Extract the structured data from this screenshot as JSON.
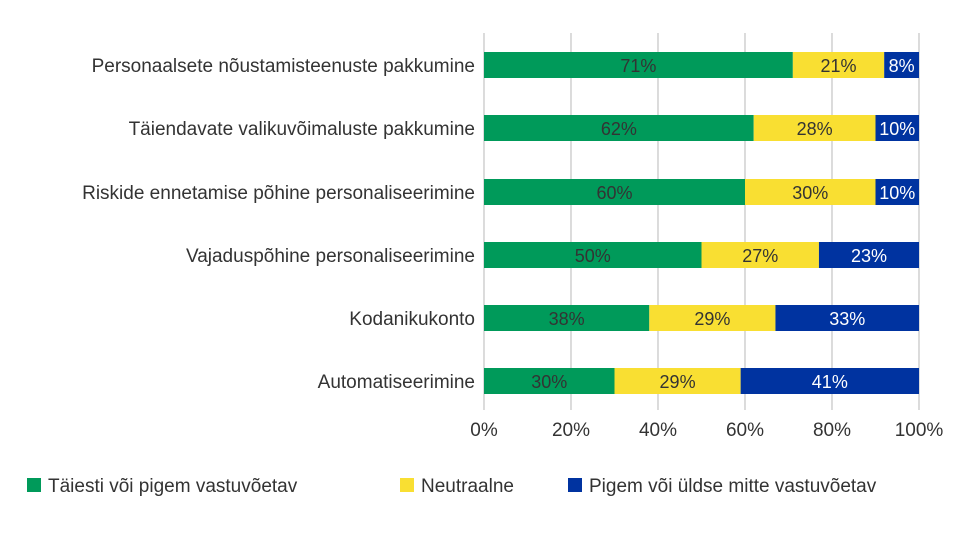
{
  "chart_data": {
    "type": "bar",
    "orientation": "horizontal",
    "stacked": true,
    "categories": [
      "Personaalsete nõustamisteenuste pakkumine",
      "Täiendavate valikuvõimaluste pakkumine",
      "Riskide ennetamise põhine personaliseerimine",
      "Vajaduspõhine personaliseerimine",
      "Kodanikukonto",
      "Automatiseerimine"
    ],
    "series": [
      {
        "name": "Täiesti või pigem vastuvõetav",
        "color": "#009a5a",
        "label_color": "#333333",
        "values": [
          71,
          62,
          60,
          50,
          38,
          30
        ]
      },
      {
        "name": "Neutraalne",
        "color": "#f9df32",
        "label_color": "#333333",
        "values": [
          21,
          28,
          30,
          27,
          29,
          29
        ]
      },
      {
        "name": "Pigem või üldse mitte vastuvõetav",
        "color": "#0033a0",
        "label_color": "#ffffff",
        "values": [
          8,
          10,
          10,
          23,
          33,
          41
        ]
      }
    ],
    "xlim": [
      0,
      100
    ],
    "xticks": [
      "0%",
      "20%",
      "40%",
      "60%",
      "80%",
      "100%"
    ],
    "value_suffix": "%",
    "grid": "vertical",
    "legend": "bottom"
  }
}
